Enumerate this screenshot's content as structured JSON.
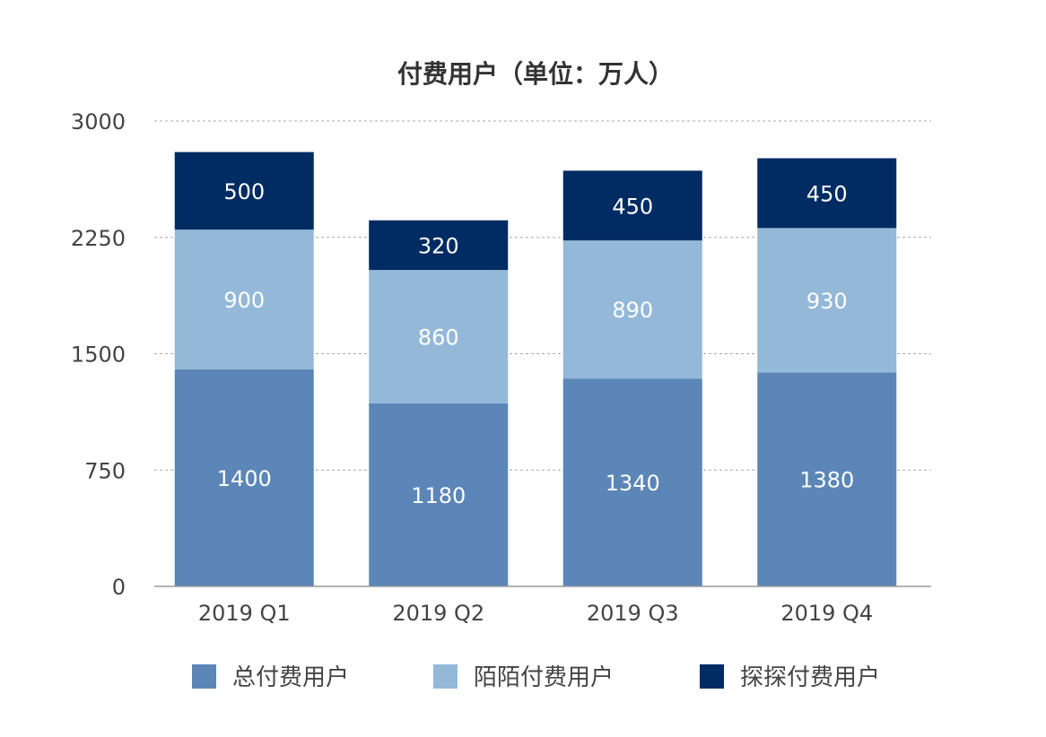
{
  "chart_data": {
    "type": "bar",
    "stacked": true,
    "title": "付费用户（单位：万人）",
    "categories": [
      "2019 Q1",
      "2019 Q2",
      "2019 Q3",
      "2019 Q4"
    ],
    "series": [
      {
        "name": "总付费用户",
        "values": [
          1400,
          1180,
          1340,
          1380
        ],
        "color": "#5b86b7"
      },
      {
        "name": "陌陌付费用户",
        "values": [
          900,
          860,
          890,
          930
        ],
        "color": "#94b8d8"
      },
      {
        "name": "探探付费用户",
        "values": [
          500,
          320,
          450,
          450
        ],
        "color": "#002b63"
      }
    ],
    "ylim": [
      0,
      3000
    ],
    "yticks": [
      "0",
      "750",
      "1500",
      "2250",
      "3000"
    ],
    "grid": true,
    "legend": "bottom"
  }
}
